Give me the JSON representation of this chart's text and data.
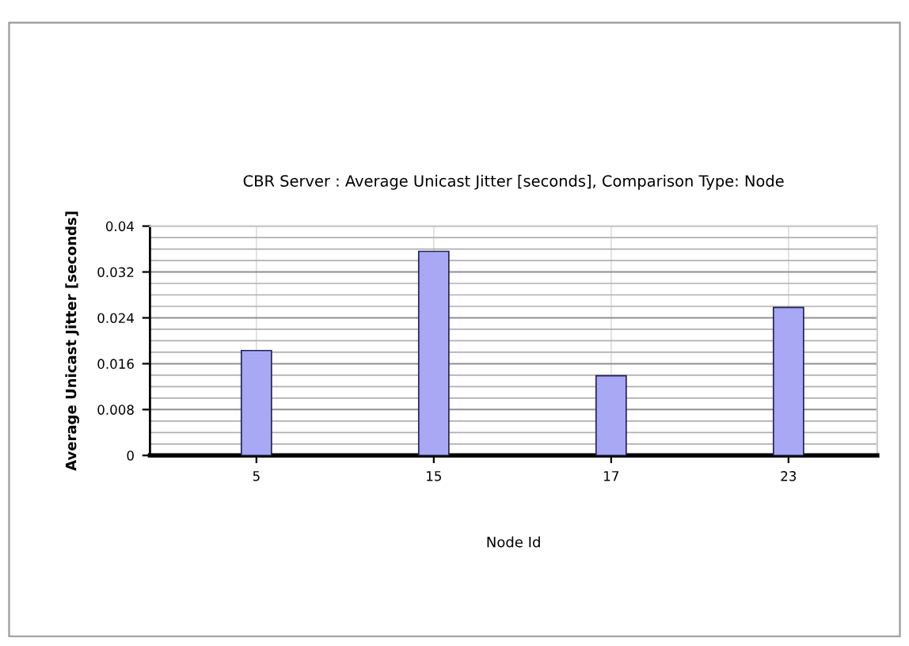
{
  "chart_data": {
    "type": "bar",
    "title": "CBR Server : Average Unicast Jitter [seconds], Comparison Type: Node",
    "xlabel": "Node Id",
    "ylabel": "Average Unicast Jitter [seconds]",
    "categories": [
      "5",
      "15",
      "17",
      "23"
    ],
    "values": [
      0.0183,
      0.0356,
      0.0139,
      0.0258
    ],
    "color": "#a8a8f4",
    "ylim": [
      0,
      0.04
    ],
    "yticks": [
      0,
      0.008,
      0.016,
      0.024,
      0.032,
      0.04
    ],
    "grid": true
  }
}
